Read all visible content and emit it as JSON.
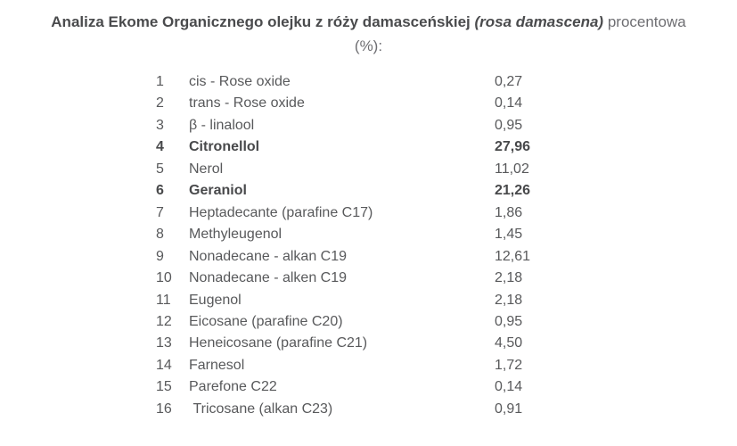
{
  "title": {
    "bold": "Analiza Ekome Organicznego olejku z róży damasceńskiej",
    "italic": "(rosa damascena)",
    "regular": "procentowa",
    "line2": "(%):"
  },
  "colors": {
    "title_dark": "#4a4b4d",
    "title_light": "#6e6e72",
    "row_text": "#58595b",
    "row_bold_text": "#48494b",
    "background": "#ffffff"
  },
  "table": {
    "rows": [
      {
        "no": "1",
        "name": "cis - Rose oxide",
        "value": "0,27",
        "bold": false
      },
      {
        "no": "2",
        "name": "trans - Rose oxide",
        "value": "0,14",
        "bold": false
      },
      {
        "no": "3",
        "name": "β - linalool",
        "value": "0,95",
        "bold": false
      },
      {
        "no": "4",
        "name": "Citronellol",
        "value": "27,96",
        "bold": true
      },
      {
        "no": "5",
        "name": "Nerol",
        "value": "11,02",
        "bold": false
      },
      {
        "no": "6",
        "name": "Geraniol",
        "value": "21,26",
        "bold": true
      },
      {
        "no": "7",
        "name": "Heptadecante (parafine C17)",
        "value": "1,86",
        "bold": false
      },
      {
        "no": "8",
        "name": "Methyleugenol",
        "value": "1,45",
        "bold": false
      },
      {
        "no": "9",
        "name": "Nonadecane - alkan C19",
        "value": "12,61",
        "bold": false
      },
      {
        "no": "10",
        "name": "Nonadecane - alken C19",
        "value": "2,18",
        "bold": false
      },
      {
        "no": "11",
        "name": "Eugenol",
        "value": "2,18",
        "bold": false
      },
      {
        "no": "12",
        "name": "Eicosane (parafine C20)",
        "value": "0,95",
        "bold": false
      },
      {
        "no": "13",
        "name": "Heneicosane (parafine C21)",
        "value": "4,50",
        "bold": false
      },
      {
        "no": "14",
        "name": "Farnesol",
        "value": "1,72",
        "bold": false
      },
      {
        "no": "15",
        "name": "Parefone C22",
        "value": "0,14",
        "bold": false
      },
      {
        "no": "16",
        "name": " Tricosane (alkan C23)",
        "value": "0,91",
        "bold": false
      }
    ]
  }
}
